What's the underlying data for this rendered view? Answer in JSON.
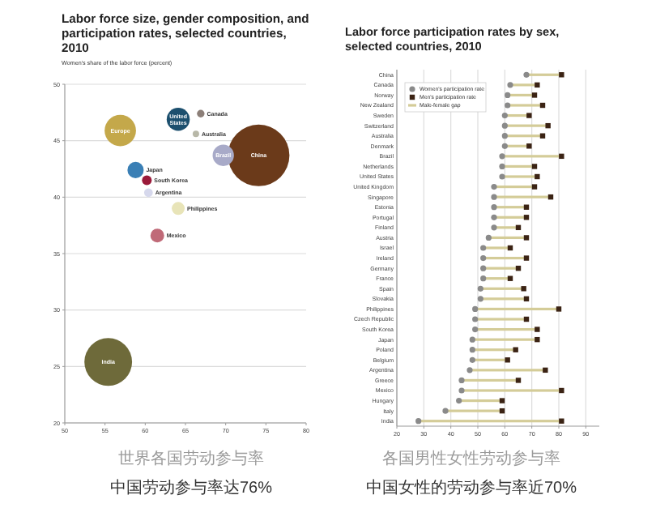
{
  "chart_data": [
    {
      "type": "bubble",
      "title": "Labor force size, gender composition, and participation rates, selected countries, 2010",
      "ylabel": "Women's share of the labor force (percent)",
      "xlim": [
        50,
        80
      ],
      "xticks": [
        50,
        55,
        60,
        65,
        70,
        75,
        80
      ],
      "ylim": [
        20,
        50
      ],
      "yticks": [
        20,
        25,
        30,
        35,
        40,
        45,
        50
      ],
      "grid": "y",
      "relative": false,
      "series": [
        {
          "name": "China",
          "color": "#6b3a1a",
          "x": [
            74.1
          ],
          "values": [
            43.7
          ],
          "sizes": [
            1
          ]
        },
        {
          "name": "India",
          "color": "#6e6a3a",
          "x": [
            55.4
          ],
          "values": [
            25.4
          ],
          "sizes": [
            0.6
          ]
        },
        {
          "name": "Europe",
          "color": "#c4a84a",
          "x": [
            56.9
          ],
          "values": [
            45.9
          ],
          "sizes": [
            0.26
          ]
        },
        {
          "name": "United States",
          "color": "#1c4f6e",
          "x": [
            64.1
          ],
          "values": [
            46.9
          ],
          "sizes": [
            0.14
          ]
        },
        {
          "name": "Brazil",
          "color": "#a8aac8",
          "x": [
            69.7
          ],
          "values": [
            43.7
          ],
          "sizes": [
            0.12
          ]
        },
        {
          "name": "Japan",
          "color": "#3a7fb5",
          "x": [
            58.8
          ],
          "values": [
            42.4
          ],
          "sizes": [
            0.07
          ]
        },
        {
          "name": "Mexico",
          "color": "#c06a78",
          "x": [
            61.5
          ],
          "values": [
            36.6
          ],
          "sizes": [
            0.05
          ]
        },
        {
          "name": "Philippines",
          "color": "#e8e4b8",
          "x": [
            64.1
          ],
          "values": [
            39.0
          ],
          "sizes": [
            0.044
          ]
        },
        {
          "name": "South Korea",
          "color": "#9a1a3a",
          "x": [
            60.2
          ],
          "values": [
            41.5
          ],
          "sizes": [
            0.025
          ]
        },
        {
          "name": "Argentina",
          "color": "#d6d8ec",
          "x": [
            60.4
          ],
          "values": [
            40.4
          ],
          "sizes": [
            0.02
          ]
        },
        {
          "name": "Canada",
          "color": "#8c7f78",
          "x": [
            66.9
          ],
          "values": [
            47.4
          ],
          "sizes": [
            0.015
          ]
        },
        {
          "name": "Australia",
          "color": "#b8b8a8",
          "x": [
            66.3
          ],
          "values": [
            45.6
          ],
          "sizes": [
            0.011
          ]
        }
      ],
      "annotations": [
        "世界各国劳动参与率",
        "中国劳动参与率达76%"
      ]
    },
    {
      "type": "scatter",
      "orientation": "horizontal",
      "title": "Labor force participation rates by sex, selected countries, 2010",
      "xlim": [
        20,
        95
      ],
      "xticks": [
        20,
        30,
        40,
        50,
        60,
        70,
        80,
        90
      ],
      "grid": "x",
      "legend": "top left",
      "categories": [
        "China",
        "Canada",
        "Norway",
        "New Zealand",
        "Sweden",
        "Switzerland",
        "Australia",
        "Denmark",
        "Brazil",
        "Netherlands",
        "United States",
        "United Kingdom",
        "Singapore",
        "Estonia",
        "Portugal",
        "Finland",
        "Austria",
        "Israel",
        "Ireland",
        "Germany",
        "France",
        "Spain",
        "Slovakia",
        "Philippines",
        "Czech Republic",
        "South Korea",
        "Japan",
        "Poland",
        "Belgium",
        "Argentina",
        "Greece",
        "Mexico",
        "Hungary",
        "Italy",
        "India"
      ],
      "series": [
        {
          "name": "Women's participation rate",
          "type": "scatter",
          "marker": "circle",
          "color": "#8a8a8a",
          "values": [
            68,
            62,
            61,
            61,
            60,
            60,
            60,
            60,
            59,
            59,
            59,
            56,
            56,
            56,
            56,
            56,
            54,
            52,
            52,
            52,
            52,
            51,
            51,
            49,
            49,
            49,
            48,
            48,
            48,
            47,
            44,
            44,
            43,
            38,
            28
          ]
        },
        {
          "name": "Men's participation rate",
          "type": "scatter",
          "marker": "square",
          "color": "#3b2314",
          "values": [
            81,
            72,
            71,
            74,
            69,
            76,
            74,
            69,
            81,
            71,
            72,
            71,
            77,
            68,
            68,
            65,
            68,
            62,
            68,
            65,
            62,
            67,
            68,
            80,
            68,
            72,
            72,
            64,
            61,
            75,
            65,
            81,
            59,
            59,
            81
          ]
        },
        {
          "name": "Male-female gap",
          "type": "bar",
          "color": "#d4cc98",
          "base": [
            68,
            62,
            61,
            61,
            60,
            60,
            60,
            60,
            59,
            59,
            59,
            56,
            56,
            56,
            56,
            56,
            54,
            52,
            52,
            52,
            52,
            51,
            51,
            49,
            49,
            49,
            48,
            48,
            48,
            47,
            44,
            44,
            43,
            38,
            28
          ],
          "values": [
            13,
            10,
            10,
            13,
            9,
            16,
            14,
            9,
            22,
            12,
            13,
            15,
            21,
            12,
            12,
            9,
            14,
            10,
            16,
            13,
            10,
            16,
            17,
            31,
            19,
            23,
            24,
            16,
            13,
            28,
            21,
            37,
            16,
            21,
            53
          ]
        }
      ],
      "annotations": [
        "各国男性女性劳动参与率",
        "中国女性的劳动参与率近70%"
      ]
    }
  ]
}
